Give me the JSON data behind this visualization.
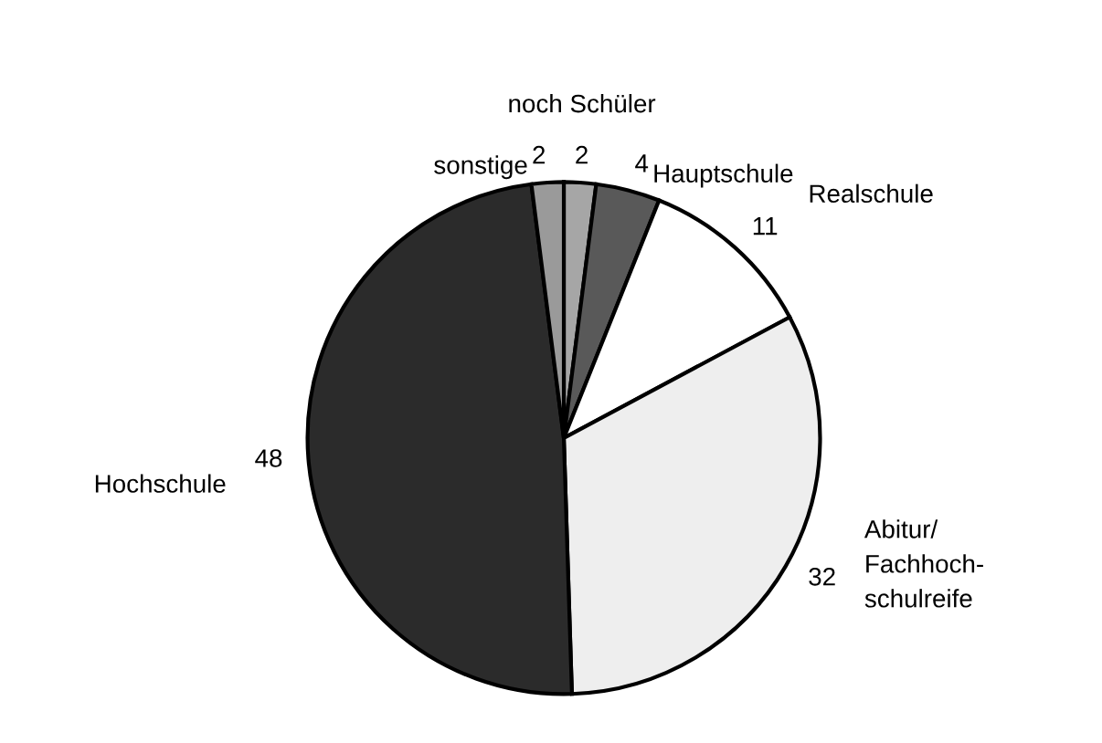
{
  "chart_data": {
    "type": "pie",
    "categories": [
      "noch Schüler",
      "Hauptschule",
      "Realschule",
      "Abitur/\nFachhoch-\nschulreife",
      "Hochschule",
      "sonstige"
    ],
    "values": [
      2,
      4,
      11,
      32,
      48,
      2
    ],
    "colors": [
      "#a6a6a6",
      "#595959",
      "#ffffff",
      "#eeeeee",
      "#2b2b2b",
      "#9a9a9a"
    ],
    "data_labels": true
  }
}
